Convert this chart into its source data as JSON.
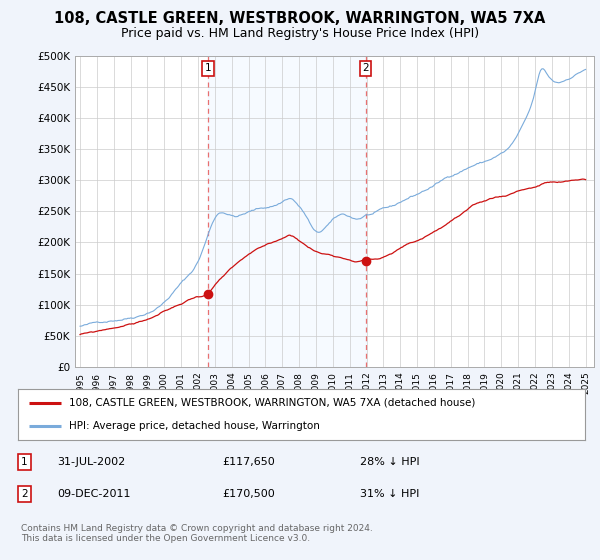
{
  "title": "108, CASTLE GREEN, WESTBROOK, WARRINGTON, WA5 7XA",
  "subtitle": "Price paid vs. HM Land Registry's House Price Index (HPI)",
  "hpi_color": "#7aabdb",
  "price_color": "#cc1111",
  "dashed_line_color": "#e87070",
  "shade_color": "#ddeeff",
  "background_color": "#f0f4fb",
  "plot_bg_color": "#ffffff",
  "ylim": [
    0,
    500000
  ],
  "yticks": [
    0,
    50000,
    100000,
    150000,
    200000,
    250000,
    300000,
    350000,
    400000,
    450000,
    500000
  ],
  "ytick_labels": [
    "£0",
    "£50K",
    "£100K",
    "£150K",
    "£200K",
    "£250K",
    "£300K",
    "£350K",
    "£400K",
    "£450K",
    "£500K"
  ],
  "xlim_start": 1994.7,
  "xlim_end": 2025.5,
  "purchase1_x": 2002.58,
  "purchase1_y": 117650,
  "purchase2_x": 2011.94,
  "purchase2_y": 170500,
  "legend_label_price": "108, CASTLE GREEN, WESTBROOK, WARRINGTON, WA5 7XA (detached house)",
  "legend_label_hpi": "HPI: Average price, detached house, Warrington",
  "table_row1": [
    "1",
    "31-JUL-2002",
    "£117,650",
    "28% ↓ HPI"
  ],
  "table_row2": [
    "2",
    "09-DEC-2011",
    "£170,500",
    "31% ↓ HPI"
  ],
  "footer": "Contains HM Land Registry data © Crown copyright and database right 2024.\nThis data is licensed under the Open Government Licence v3.0.",
  "title_fontsize": 10.5,
  "subtitle_fontsize": 9
}
